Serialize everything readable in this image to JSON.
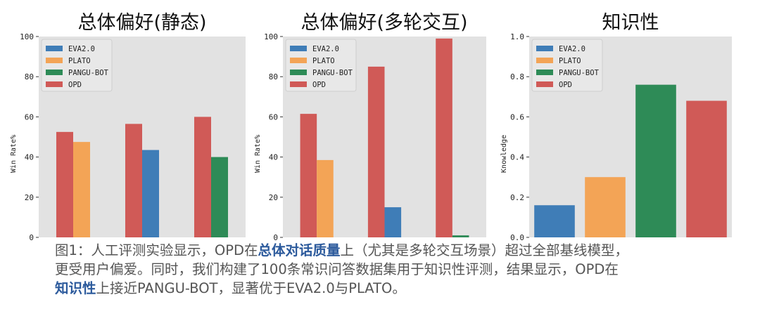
{
  "colors": {
    "EVA2.0": "#3f7db7",
    "PLATO": "#f3a456",
    "PANGU-BOT": "#2e8b57",
    "OPD": "#d05a57"
  },
  "chart_data": [
    {
      "type": "bar",
      "title": "总体偏好(静态)",
      "ylabel": "Win Rate%",
      "ylim": [
        0,
        100
      ],
      "yticks": [
        0,
        20,
        40,
        60,
        80,
        100
      ],
      "yticklabels": [
        "0",
        "20",
        "40",
        "60",
        "80",
        "100"
      ],
      "legend": [
        "EVA2.0",
        "PLATO",
        "PANGU-BOT",
        "OPD"
      ],
      "legend_position": "top-left",
      "grid": false,
      "groups": [
        {
          "bars": [
            {
              "series": "OPD",
              "value": 52.5
            },
            {
              "series": "PLATO",
              "value": 47.5
            }
          ]
        },
        {
          "bars": [
            {
              "series": "OPD",
              "value": 56.5
            },
            {
              "series": "EVA2.0",
              "value": 43.5
            }
          ]
        },
        {
          "bars": [
            {
              "series": "OPD",
              "value": 60.0
            },
            {
              "series": "PANGU-BOT",
              "value": 40.0
            }
          ]
        }
      ]
    },
    {
      "type": "bar",
      "title": "总体偏好(多轮交互)",
      "ylabel": "Win Rate%",
      "ylim": [
        0,
        100
      ],
      "yticks": [
        0,
        20,
        40,
        60,
        80,
        100
      ],
      "yticklabels": [
        "0",
        "20",
        "40",
        "60",
        "80",
        "100"
      ],
      "legend": [
        "EVA2.0",
        "PLATO",
        "PANGU-BOT",
        "OPD"
      ],
      "legend_position": "top-left",
      "grid": false,
      "groups": [
        {
          "bars": [
            {
              "series": "OPD",
              "value": 61.5
            },
            {
              "series": "PLATO",
              "value": 38.5
            }
          ]
        },
        {
          "bars": [
            {
              "series": "OPD",
              "value": 85.0
            },
            {
              "series": "EVA2.0",
              "value": 15.0
            }
          ]
        },
        {
          "bars": [
            {
              "series": "OPD",
              "value": 99.0
            },
            {
              "series": "PANGU-BOT",
              "value": 1.0
            }
          ]
        }
      ]
    },
    {
      "type": "bar",
      "title": "知识性",
      "ylabel": "Knowledge",
      "ylim": [
        0,
        1.0
      ],
      "yticks": [
        0,
        0.2,
        0.4,
        0.6,
        0.8,
        1.0
      ],
      "yticklabels": [
        "0.0",
        "0.2",
        "0.4",
        "0.6",
        "0.8",
        "1.0"
      ],
      "legend": [
        "EVA2.0",
        "PLATO",
        "PANGU-BOT",
        "OPD"
      ],
      "legend_position": "top-left",
      "grid": false,
      "categories": [
        "EVA2.0",
        "PLATO",
        "PANGU-BOT",
        "OPD"
      ],
      "values": [
        0.16,
        0.3,
        0.76,
        0.68
      ]
    }
  ],
  "caption": {
    "lines": [
      [
        {
          "text": "图1：人工评测实验显示，OPD在",
          "hl": false
        },
        {
          "text": "总体对话质量",
          "hl": true
        },
        {
          "text": "上（尤其是多轮交互场景）超过全部基线模型，",
          "hl": false
        }
      ],
      [
        {
          "text": "更受用户偏爱。同时，我们构建了100条常识问答数据集用于知识性评测，结果显示，OPD在",
          "hl": false
        }
      ],
      [
        {
          "text": "知识性",
          "hl": true
        },
        {
          "text": "上接近PANGU-BOT，显著优于EVA2.0与PLATO。",
          "hl": false
        }
      ]
    ]
  }
}
